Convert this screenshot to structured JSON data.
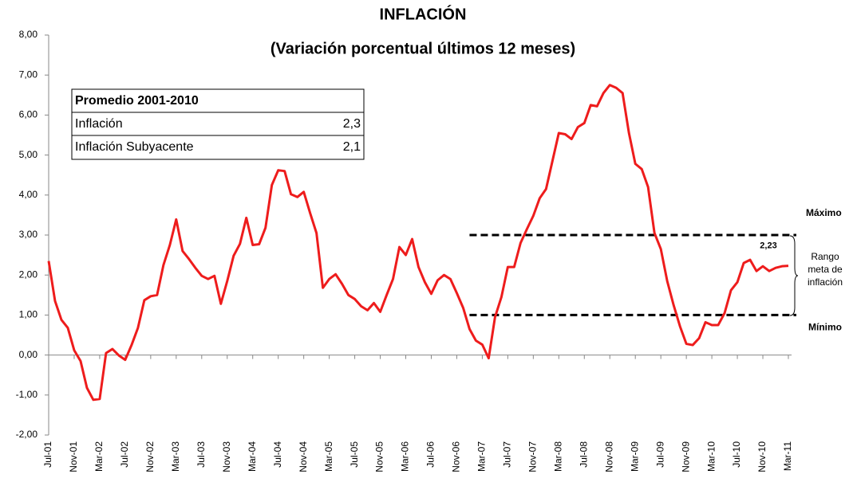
{
  "chart_data": {
    "type": "line",
    "title": "INFLACIÓN",
    "subtitle": "(Variación porcentual últimos 12 meses)",
    "categories": [
      "Jul-01",
      null,
      null,
      null,
      "Nov-01",
      null,
      null,
      null,
      "Mar-02",
      null,
      null,
      null,
      "Jul-02",
      null,
      null,
      null,
      "Nov-02",
      null,
      null,
      null,
      "Mar-03",
      null,
      null,
      null,
      "Jul-03",
      null,
      null,
      null,
      "Nov-03",
      null,
      null,
      null,
      "Mar-04",
      null,
      null,
      null,
      "Jul-04",
      null,
      null,
      null,
      "Nov-04",
      null,
      null,
      null,
      "Mar-05",
      null,
      null,
      null,
      "Jul-05",
      null,
      null,
      null,
      "Nov-05",
      null,
      null,
      null,
      "Mar-06",
      null,
      null,
      null,
      "Jul-06",
      null,
      null,
      null,
      "Nov-06",
      null,
      null,
      null,
      "Mar-07",
      null,
      null,
      null,
      "Jul-07",
      null,
      null,
      null,
      "Nov-07",
      null,
      null,
      null,
      "Mar-08",
      null,
      null,
      null,
      "Jul-08",
      null,
      null,
      null,
      "Nov-08",
      null,
      null,
      null,
      "Mar-09",
      null,
      null,
      null,
      "Jul-09",
      null,
      null,
      null,
      "Nov-09",
      null,
      null,
      null,
      "Mar-10",
      null,
      null,
      null,
      "Jul-10",
      null,
      null,
      null,
      "Nov-10",
      null,
      null,
      null,
      "Mar-11"
    ],
    "series": [
      {
        "name": "Inflación",
        "color": "#ee1c1c",
        "values": [
          2.35,
          1.35,
          0.88,
          0.68,
          0.12,
          -0.15,
          -0.82,
          -1.12,
          -1.1,
          0.05,
          0.15,
          -0.01,
          -0.12,
          0.25,
          0.68,
          1.37,
          1.47,
          1.5,
          2.25,
          2.75,
          3.39,
          2.6,
          2.4,
          2.18,
          1.98,
          1.9,
          1.98,
          1.28,
          1.85,
          2.48,
          2.78,
          3.43,
          2.75,
          2.77,
          3.18,
          4.25,
          4.62,
          4.6,
          4.02,
          3.95,
          4.08,
          3.55,
          3.05,
          1.68,
          1.9,
          2.02,
          1.78,
          1.5,
          1.4,
          1.22,
          1.12,
          1.3,
          1.08,
          1.5,
          1.9,
          2.7,
          2.5,
          2.9,
          2.2,
          1.82,
          1.53,
          1.87,
          2.0,
          1.9,
          1.55,
          1.18,
          0.65,
          0.36,
          0.26,
          -0.08,
          0.95,
          1.45,
          2.2,
          2.2,
          2.8,
          3.15,
          3.48,
          3.92,
          4.15,
          4.85,
          5.55,
          5.52,
          5.4,
          5.7,
          5.8,
          6.25,
          6.22,
          6.55,
          6.75,
          6.68,
          6.55,
          5.55,
          4.78,
          4.65,
          4.2,
          3.05,
          2.65,
          1.85,
          1.25,
          0.72,
          0.28,
          0.25,
          0.42,
          0.82,
          0.75,
          0.75,
          1.05,
          1.62,
          1.82,
          2.3,
          2.38,
          2.1,
          2.22,
          2.1,
          2.18,
          2.22,
          2.23
        ],
        "value_labels": [
          null,
          null,
          null,
          null,
          null,
          null,
          null,
          null,
          null,
          null,
          null,
          null,
          null,
          null,
          null,
          null,
          null,
          null,
          null,
          null,
          null,
          null,
          null,
          null,
          null,
          null,
          null,
          null,
          null,
          null,
          null,
          null,
          null,
          null,
          null,
          null,
          null,
          null,
          null,
          null,
          null,
          null,
          null,
          null,
          null,
          null,
          null,
          null,
          null,
          null,
          null,
          null,
          null,
          null,
          null,
          null,
          null,
          null,
          null,
          null,
          null,
          null,
          null,
          null,
          null,
          null,
          null,
          null,
          null,
          null,
          null,
          null,
          null,
          null,
          null,
          null,
          null,
          null,
          null,
          null,
          null,
          null,
          null,
          null,
          null,
          null,
          null,
          null,
          null,
          null,
          null,
          null,
          null,
          null,
          null,
          null,
          null,
          null,
          null,
          null,
          null,
          null,
          null,
          null,
          null,
          null,
          null,
          null,
          null,
          null,
          null,
          null,
          null,
          null,
          null,
          null,
          "2,23"
        ]
      }
    ],
    "ylim": [
      -2,
      8
    ],
    "yticks": [
      {
        "value": -2,
        "label": "-2,00"
      },
      {
        "value": -1,
        "label": "-1,00"
      },
      {
        "value": 0,
        "label": "0,00"
      },
      {
        "value": 1,
        "label": "1,00"
      },
      {
        "value": 2,
        "label": "2,00"
      },
      {
        "value": 3,
        "label": "3,00"
      },
      {
        "value": 4,
        "label": "4,00"
      },
      {
        "value": 5,
        "label": "5,00"
      },
      {
        "value": 6,
        "label": "6,00"
      },
      {
        "value": 7,
        "label": "7,00"
      },
      {
        "value": 8,
        "label": "8,00"
      }
    ],
    "target_range": {
      "max": 3,
      "max_label": "Máximo",
      "min": 1,
      "min_label": "Mínimo",
      "label": "Rango meta de inflación"
    },
    "table": {
      "title": "Promedio 2001-2010",
      "rows": [
        [
          "Inflación",
          "2,3"
        ],
        [
          "Inflación Subyacente",
          "2,1"
        ]
      ]
    }
  }
}
